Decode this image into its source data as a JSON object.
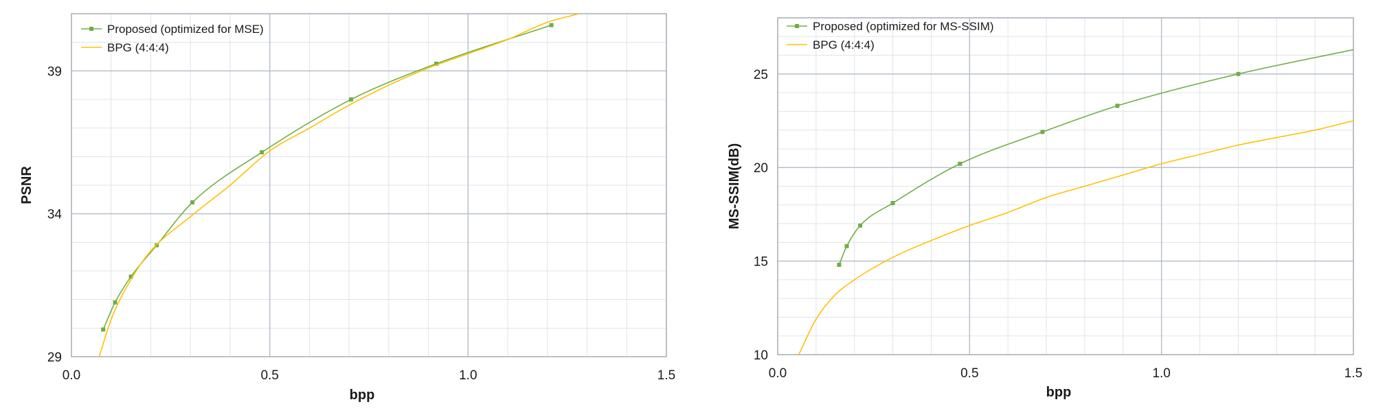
{
  "chart_data": [
    {
      "type": "line",
      "xlabel": "bpp",
      "ylabel": "PSNR",
      "xlim": [
        0.0,
        1.5
      ],
      "ylim": [
        29,
        41
      ],
      "xticks": [
        "0.0",
        "0.5",
        "1.0",
        "1.5"
      ],
      "yticks": [
        "29",
        "34",
        "39"
      ],
      "grid": true,
      "legend_position": "top-left",
      "series": [
        {
          "name": "Proposed (optimized for MSE)",
          "color": "#70ad47",
          "markers": true,
          "x": [
            0.08,
            0.11,
            0.15,
            0.215,
            0.305,
            0.48,
            0.705,
            0.92,
            1.21
          ],
          "y": [
            29.95,
            30.9,
            31.8,
            32.9,
            34.4,
            36.15,
            38.0,
            39.25,
            40.6
          ]
        },
        {
          "name": "BPG (4:4:4)",
          "color": "#ffc000",
          "markers": false,
          "x": [
            0.07,
            0.1,
            0.15,
            0.2,
            0.3,
            0.4,
            0.5,
            0.6,
            0.7,
            0.8,
            0.9,
            1.0,
            1.1,
            1.2,
            1.28
          ],
          "y": [
            29.0,
            30.3,
            31.7,
            32.7,
            33.9,
            35.0,
            36.2,
            37.0,
            37.8,
            38.5,
            39.1,
            39.6,
            40.1,
            40.7,
            41.0
          ]
        }
      ]
    },
    {
      "type": "line",
      "xlabel": "bpp",
      "ylabel": "MS-SSIM(dB)",
      "xlim": [
        0.0,
        1.5
      ],
      "ylim": [
        10,
        28
      ],
      "xticks": [
        "0.0",
        "0.5",
        "1.0",
        "1.5"
      ],
      "yticks": [
        "10",
        "15",
        "20",
        "25"
      ],
      "grid": true,
      "legend_position": "top-left",
      "series": [
        {
          "name": "Proposed (optimized for MS-SSIM)",
          "color": "#70ad47",
          "markers": true,
          "x": [
            0.16,
            0.18,
            0.215,
            0.3,
            0.475,
            0.69,
            0.885,
            1.2
          ],
          "y": [
            14.8,
            15.8,
            16.9,
            18.1,
            20.2,
            21.9,
            23.3,
            25.0
          ],
          "extend_to": [
            1.5,
            26.3
          ]
        },
        {
          "name": "BPG (4:4:4)",
          "color": "#ffc000",
          "markers": false,
          "x": [
            0.055,
            0.1,
            0.15,
            0.2,
            0.3,
            0.4,
            0.5,
            0.6,
            0.7,
            0.8,
            0.9,
            1.0,
            1.1,
            1.2,
            1.3,
            1.4,
            1.5
          ],
          "y": [
            10.0,
            11.9,
            13.2,
            14.0,
            15.2,
            16.1,
            16.9,
            17.6,
            18.4,
            19.0,
            19.6,
            20.2,
            20.7,
            21.2,
            21.6,
            22.0,
            22.5
          ]
        }
      ]
    }
  ]
}
